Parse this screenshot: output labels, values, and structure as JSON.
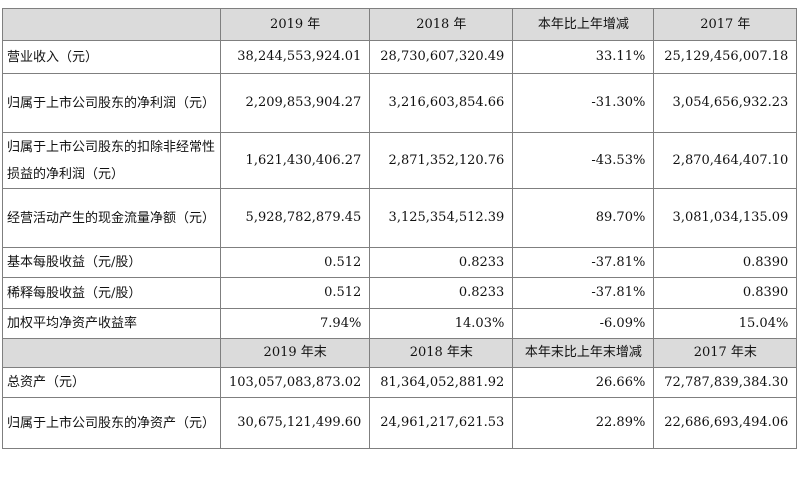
{
  "header1": [
    "",
    "2019 年",
    "2018 年",
    "本年比上年增减",
    "2017 年"
  ],
  "rows1": [
    {
      "label": "营业收入（元）",
      "v2019": "38,244,553,924.01",
      "v2018": "28,730,607,320.49",
      "change": "33.11%",
      "v2017": "25,129,456,007.18"
    },
    {
      "label": "归属于上市公司股东的净利润（元）",
      "v2019": "2,209,853,904.27",
      "v2018": "3,216,603,854.66",
      "change": "-31.30%",
      "v2017": "3,054,656,932.23"
    },
    {
      "label": "归属于上市公司股东的扣除非经常性损益的净利润（元）",
      "v2019": "1,621,430,406.27",
      "v2018": "2,871,352,120.76",
      "change": "-43.53%",
      "v2017": "2,870,464,407.10"
    },
    {
      "label": "经营活动产生的现金流量净额（元）",
      "v2019": "5,928,782,879.45",
      "v2018": "3,125,354,512.39",
      "change": "89.70%",
      "v2017": "3,081,034,135.09"
    },
    {
      "label": "基本每股收益（元/股）",
      "v2019": "0.512",
      "v2018": "0.8233",
      "change": "-37.81%",
      "v2017": "0.8390"
    },
    {
      "label": "稀释每股收益（元/股）",
      "v2019": "0.512",
      "v2018": "0.8233",
      "change": "-37.81%",
      "v2017": "0.8390"
    },
    {
      "label": "加权平均净资产收益率",
      "v2019": "7.94%",
      "v2018": "14.03%",
      "change": "-6.09%",
      "v2017": "15.04%"
    }
  ],
  "header2": [
    "",
    "2019 年末",
    "2018 年末",
    "本年末比上年末增减",
    "2017 年末"
  ],
  "rows2": [
    {
      "label": "总资产（元）",
      "v2019": "103,057,083,873.02",
      "v2018": "81,364,052,881.92",
      "change": "26.66%",
      "v2017": "72,787,839,384.30"
    },
    {
      "label": "归属于上市公司股东的净资产（元）",
      "v2019": "30,675,121,499.60",
      "v2018": "24,961,217,621.53",
      "change": "22.89%",
      "v2017": "22,686,693,494.06"
    }
  ]
}
